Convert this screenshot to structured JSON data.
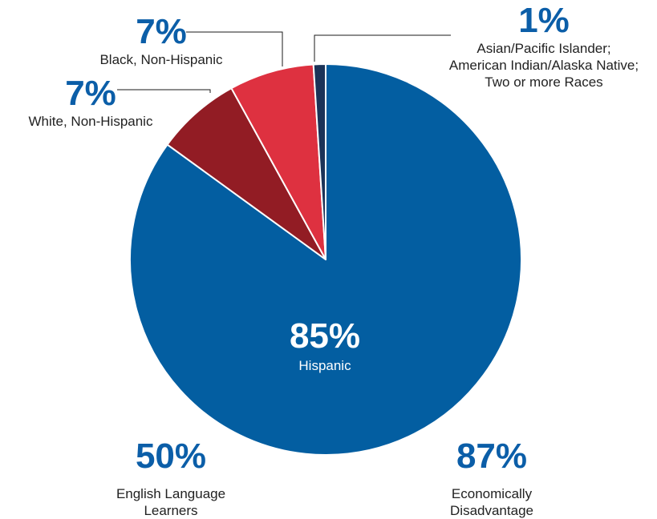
{
  "chart_data": {
    "type": "pie",
    "slices": [
      {
        "pct_label": "85%",
        "label": "Hispanic",
        "value": 85,
        "color": "#035ea1"
      },
      {
        "pct_label": "7%",
        "label": "White, Non-Hispanic",
        "value": 7,
        "color": "#921c24"
      },
      {
        "pct_label": "7%",
        "label": "Black, Non-Hispanic",
        "value": 7,
        "color": "#de3140"
      },
      {
        "pct_label": "1%",
        "label": "Asian/Pacific Islander; American Indian/Alaska Native; Two or more Races",
        "value": 1,
        "color": "#1b3358"
      }
    ]
  },
  "stats": [
    {
      "pct_label": "50%",
      "label": "English Language Learners"
    },
    {
      "pct_label": "87%",
      "label": "Economically Disadvantage"
    }
  ]
}
